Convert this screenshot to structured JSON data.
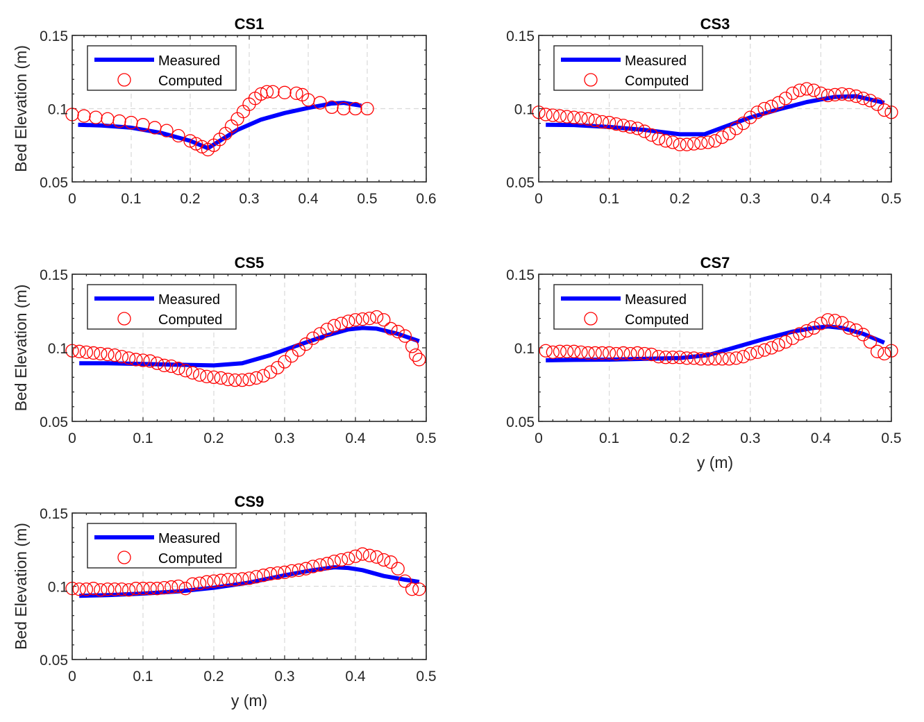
{
  "figure": {
    "measured_color": "#0000ff",
    "computed_color": "#ff0000",
    "grid_color": "#d9d9d9",
    "axis_color": "#262626"
  },
  "chart_data": [
    {
      "type": "line",
      "title": "CS1",
      "xlabel": "",
      "ylabel": "Bed Elevation (m)",
      "xlim": [
        0,
        0.6
      ],
      "ylim": [
        0.05,
        0.15
      ],
      "xticks": [
        "0",
        "0.1",
        "0.2",
        "0.3",
        "0.4",
        "0.5",
        "0.6"
      ],
      "yticks": [
        "0.05",
        "0.1",
        "0.15"
      ],
      "grid": true,
      "legend": {
        "position": "top-left",
        "entries": [
          "Measured",
          "Computed"
        ]
      },
      "series": [
        {
          "name": "Measured",
          "style": "line",
          "x": [
            0.01,
            0.05,
            0.1,
            0.15,
            0.2,
            0.23,
            0.25,
            0.28,
            0.32,
            0.36,
            0.4,
            0.44,
            0.46,
            0.49
          ],
          "y": [
            0.089,
            0.0885,
            0.087,
            0.0835,
            0.078,
            0.073,
            0.078,
            0.0855,
            0.0925,
            0.097,
            0.1005,
            0.1035,
            0.104,
            0.102
          ]
        },
        {
          "name": "Computed",
          "style": "markers",
          "x": [
            0.0,
            0.02,
            0.04,
            0.06,
            0.08,
            0.1,
            0.12,
            0.14,
            0.16,
            0.18,
            0.2,
            0.21,
            0.22,
            0.23,
            0.24,
            0.25,
            0.26,
            0.27,
            0.28,
            0.29,
            0.3,
            0.31,
            0.32,
            0.33,
            0.34,
            0.36,
            0.38,
            0.39,
            0.4,
            0.42,
            0.44,
            0.46,
            0.48,
            0.5
          ],
          "y": [
            0.096,
            0.095,
            0.094,
            0.093,
            0.0915,
            0.0905,
            0.089,
            0.087,
            0.085,
            0.0815,
            0.078,
            0.076,
            0.074,
            0.072,
            0.075,
            0.079,
            0.083,
            0.088,
            0.093,
            0.098,
            0.103,
            0.107,
            0.11,
            0.1115,
            0.1115,
            0.111,
            0.1105,
            0.1095,
            0.106,
            0.104,
            0.101,
            0.1,
            0.1,
            0.1
          ]
        }
      ]
    },
    {
      "type": "line",
      "title": "CS3",
      "xlabel": "",
      "ylabel": "",
      "xlim": [
        0,
        0.5
      ],
      "ylim": [
        0.05,
        0.15
      ],
      "xticks": [
        "0",
        "0.1",
        "0.2",
        "0.3",
        "0.4",
        "0.5"
      ],
      "yticks": [
        "0.05",
        "0.1",
        "0.15"
      ],
      "grid": true,
      "legend": {
        "position": "top-left",
        "entries": [
          "Measured",
          "Computed"
        ]
      },
      "series": [
        {
          "name": "Measured",
          "style": "line",
          "x": [
            0.01,
            0.05,
            0.1,
            0.15,
            0.2,
            0.235,
            0.26,
            0.3,
            0.34,
            0.38,
            0.42,
            0.45,
            0.49
          ],
          "y": [
            0.089,
            0.0888,
            0.0875,
            0.0855,
            0.0825,
            0.0825,
            0.087,
            0.094,
            0.0995,
            0.1045,
            0.108,
            0.1085,
            0.104
          ]
        },
        {
          "name": "Computed",
          "style": "markers",
          "x": [
            0.0,
            0.01,
            0.02,
            0.03,
            0.04,
            0.05,
            0.06,
            0.07,
            0.08,
            0.09,
            0.1,
            0.11,
            0.12,
            0.13,
            0.14,
            0.15,
            0.16,
            0.17,
            0.18,
            0.19,
            0.2,
            0.21,
            0.22,
            0.23,
            0.24,
            0.25,
            0.26,
            0.27,
            0.28,
            0.29,
            0.3,
            0.31,
            0.32,
            0.33,
            0.34,
            0.35,
            0.36,
            0.37,
            0.38,
            0.39,
            0.4,
            0.41,
            0.42,
            0.43,
            0.44,
            0.45,
            0.46,
            0.47,
            0.48,
            0.49,
            0.5
          ],
          "y": [
            0.0975,
            0.096,
            0.0955,
            0.095,
            0.0945,
            0.094,
            0.0935,
            0.093,
            0.092,
            0.091,
            0.0905,
            0.0895,
            0.0885,
            0.0875,
            0.0865,
            0.0845,
            0.082,
            0.0795,
            0.078,
            0.077,
            0.0755,
            0.0755,
            0.076,
            0.0765,
            0.077,
            0.078,
            0.0805,
            0.083,
            0.0865,
            0.09,
            0.094,
            0.0975,
            0.1,
            0.1015,
            0.104,
            0.107,
            0.1105,
            0.1125,
            0.1135,
            0.1125,
            0.1105,
            0.109,
            0.1095,
            0.11,
            0.1095,
            0.1085,
            0.107,
            0.1055,
            0.103,
            0.099,
            0.0975
          ]
        }
      ]
    },
    {
      "type": "line",
      "title": "CS5",
      "xlabel": "",
      "ylabel": "Bed Elevation (m)",
      "xlim": [
        0,
        0.5
      ],
      "ylim": [
        0.05,
        0.15
      ],
      "xticks": [
        "0",
        "0.1",
        "0.2",
        "0.3",
        "0.4",
        "0.5"
      ],
      "yticks": [
        "0.05",
        "0.1",
        "0.15"
      ],
      "grid": true,
      "legend": {
        "position": "top-left",
        "entries": [
          "Measured",
          "Computed"
        ]
      },
      "series": [
        {
          "name": "Measured",
          "style": "line",
          "x": [
            0.01,
            0.05,
            0.1,
            0.15,
            0.2,
            0.24,
            0.28,
            0.32,
            0.36,
            0.39,
            0.41,
            0.43,
            0.46,
            0.49
          ],
          "y": [
            0.0895,
            0.0895,
            0.089,
            0.0885,
            0.088,
            0.0895,
            0.095,
            0.102,
            0.1085,
            0.1125,
            0.1135,
            0.113,
            0.1095,
            0.1045
          ]
        },
        {
          "name": "Computed",
          "style": "markers",
          "x": [
            0.0,
            0.01,
            0.02,
            0.03,
            0.04,
            0.05,
            0.06,
            0.07,
            0.08,
            0.09,
            0.1,
            0.11,
            0.12,
            0.13,
            0.14,
            0.15,
            0.16,
            0.17,
            0.18,
            0.19,
            0.2,
            0.21,
            0.22,
            0.23,
            0.24,
            0.25,
            0.26,
            0.27,
            0.28,
            0.29,
            0.3,
            0.31,
            0.32,
            0.33,
            0.34,
            0.35,
            0.36,
            0.37,
            0.38,
            0.39,
            0.4,
            0.41,
            0.42,
            0.43,
            0.44,
            0.45,
            0.46,
            0.47,
            0.48,
            0.485,
            0.49
          ],
          "y": [
            0.098,
            0.0975,
            0.097,
            0.0965,
            0.096,
            0.0955,
            0.095,
            0.094,
            0.093,
            0.092,
            0.0915,
            0.091,
            0.0895,
            0.088,
            0.0875,
            0.086,
            0.0845,
            0.083,
            0.0815,
            0.0805,
            0.08,
            0.0795,
            0.0785,
            0.078,
            0.078,
            0.0785,
            0.0795,
            0.081,
            0.0835,
            0.0865,
            0.0905,
            0.0945,
            0.0985,
            0.1025,
            0.1065,
            0.1095,
            0.1125,
            0.115,
            0.1165,
            0.118,
            0.119,
            0.1195,
            0.12,
            0.121,
            0.119,
            0.113,
            0.111,
            0.108,
            0.101,
            0.095,
            0.092
          ]
        }
      ]
    },
    {
      "type": "line",
      "title": "CS7",
      "xlabel": "y (m)",
      "ylabel": "",
      "xlim": [
        0,
        0.5
      ],
      "ylim": [
        0.05,
        0.15
      ],
      "xticks": [
        "0",
        "0.1",
        "0.2",
        "0.3",
        "0.4",
        "0.5"
      ],
      "yticks": [
        "0.05",
        "0.1",
        "0.15"
      ],
      "grid": true,
      "legend": {
        "position": "top-left",
        "entries": [
          "Measured",
          "Computed"
        ]
      },
      "series": [
        {
          "name": "Measured",
          "style": "line",
          "x": [
            0.01,
            0.05,
            0.1,
            0.15,
            0.2,
            0.24,
            0.28,
            0.32,
            0.36,
            0.39,
            0.41,
            0.43,
            0.46,
            0.49
          ],
          "y": [
            0.0915,
            0.0918,
            0.092,
            0.0925,
            0.093,
            0.095,
            0.1005,
            0.106,
            0.111,
            0.1135,
            0.1145,
            0.1135,
            0.1095,
            0.1035
          ]
        },
        {
          "name": "Computed",
          "style": "markers",
          "x": [
            0.01,
            0.02,
            0.03,
            0.04,
            0.05,
            0.06,
            0.07,
            0.08,
            0.09,
            0.1,
            0.11,
            0.12,
            0.13,
            0.14,
            0.15,
            0.16,
            0.17,
            0.18,
            0.19,
            0.2,
            0.21,
            0.22,
            0.23,
            0.24,
            0.25,
            0.26,
            0.27,
            0.28,
            0.29,
            0.3,
            0.31,
            0.32,
            0.33,
            0.34,
            0.35,
            0.36,
            0.37,
            0.38,
            0.39,
            0.4,
            0.41,
            0.42,
            0.43,
            0.44,
            0.45,
            0.46,
            0.47,
            0.48,
            0.49,
            0.5
          ],
          "y": [
            0.098,
            0.097,
            0.0975,
            0.0975,
            0.0975,
            0.097,
            0.0965,
            0.0965,
            0.0965,
            0.0965,
            0.096,
            0.0965,
            0.096,
            0.0965,
            0.096,
            0.0955,
            0.094,
            0.0935,
            0.0935,
            0.0935,
            0.093,
            0.093,
            0.0925,
            0.0925,
            0.0925,
            0.0925,
            0.0925,
            0.093,
            0.094,
            0.096,
            0.097,
            0.0985,
            0.1,
            0.102,
            0.104,
            0.1065,
            0.1095,
            0.1115,
            0.1135,
            0.1165,
            0.119,
            0.1185,
            0.117,
            0.1135,
            0.112,
            0.109,
            0.104,
            0.0975,
            0.096,
            0.098
          ]
        }
      ]
    },
    {
      "type": "line",
      "title": "CS9",
      "xlabel": "y (m)",
      "ylabel": "Bed Elevation (m)",
      "xlim": [
        0,
        0.5
      ],
      "ylim": [
        0.05,
        0.15
      ],
      "xticks": [
        "0",
        "0.1",
        "0.2",
        "0.3",
        "0.4",
        "0.5"
      ],
      "yticks": [
        "0.05",
        "0.1",
        "0.15"
      ],
      "grid": true,
      "legend": {
        "position": "top-left",
        "entries": [
          "Measured",
          "Computed"
        ]
      },
      "series": [
        {
          "name": "Measured",
          "style": "line",
          "x": [
            0.01,
            0.05,
            0.1,
            0.15,
            0.2,
            0.25,
            0.3,
            0.34,
            0.37,
            0.39,
            0.41,
            0.44,
            0.47,
            0.49
          ],
          "y": [
            0.0935,
            0.094,
            0.095,
            0.0965,
            0.099,
            0.1025,
            0.1075,
            0.111,
            0.113,
            0.1125,
            0.111,
            0.107,
            0.1045,
            0.103
          ]
        },
        {
          "name": "Computed",
          "style": "markers",
          "x": [
            0.0,
            0.01,
            0.02,
            0.03,
            0.04,
            0.05,
            0.06,
            0.07,
            0.08,
            0.09,
            0.1,
            0.11,
            0.12,
            0.13,
            0.14,
            0.15,
            0.16,
            0.17,
            0.18,
            0.19,
            0.2,
            0.21,
            0.22,
            0.23,
            0.24,
            0.25,
            0.26,
            0.27,
            0.28,
            0.29,
            0.3,
            0.31,
            0.32,
            0.33,
            0.34,
            0.35,
            0.36,
            0.37,
            0.38,
            0.39,
            0.4,
            0.41,
            0.42,
            0.43,
            0.44,
            0.45,
            0.46,
            0.47,
            0.48,
            0.49
          ],
          "y": [
            0.0985,
            0.098,
            0.098,
            0.0985,
            0.0975,
            0.098,
            0.098,
            0.098,
            0.0975,
            0.0985,
            0.0985,
            0.0985,
            0.0985,
            0.099,
            0.0995,
            0.1,
            0.0985,
            0.1015,
            0.102,
            0.103,
            0.1035,
            0.104,
            0.1045,
            0.1045,
            0.105,
            0.1055,
            0.1065,
            0.1075,
            0.1085,
            0.109,
            0.1095,
            0.1105,
            0.111,
            0.112,
            0.1135,
            0.1145,
            0.1155,
            0.117,
            0.118,
            0.119,
            0.1205,
            0.122,
            0.121,
            0.12,
            0.118,
            0.1165,
            0.112,
            0.1035,
            0.098,
            0.098
          ]
        }
      ]
    }
  ]
}
